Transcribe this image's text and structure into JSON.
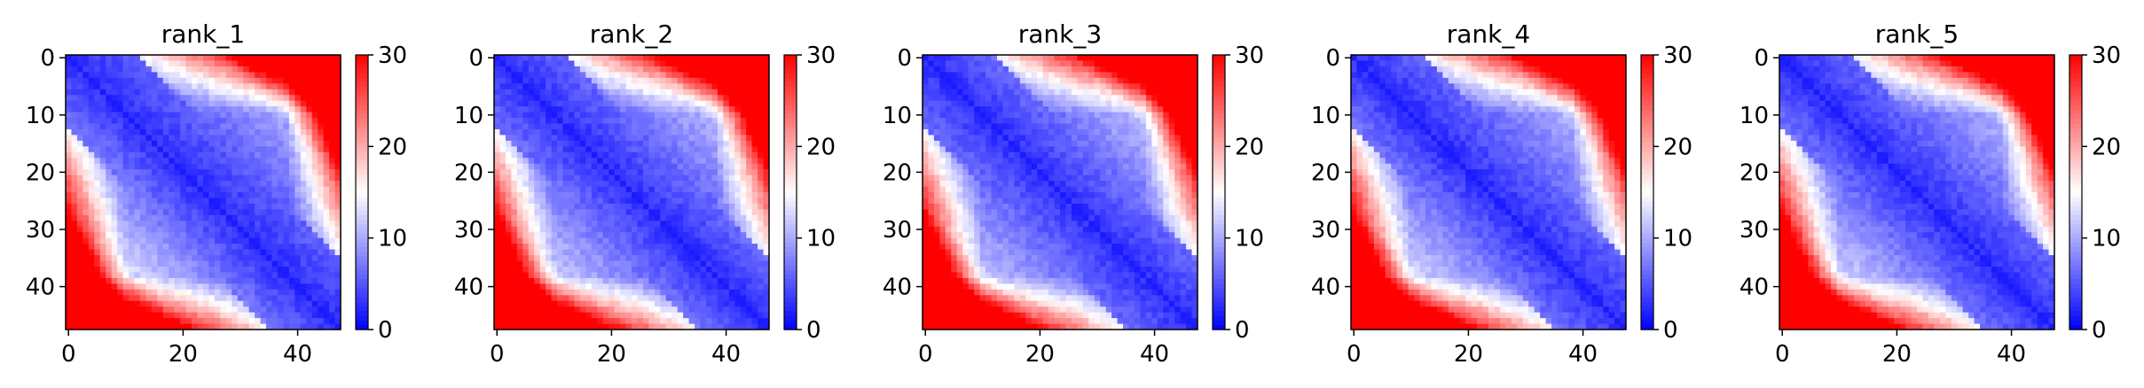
{
  "chart_data": [
    {
      "type": "heatmap",
      "title": "rank_1",
      "n": 48,
      "x_ticks": [
        0,
        20,
        40
      ],
      "y_ticks": [
        0,
        10,
        20,
        30,
        40
      ],
      "colorbar": {
        "min": 0,
        "max": 30,
        "ticks": [
          0,
          10,
          20,
          30
        ]
      },
      "colormap": "bwr",
      "pattern": {
        "seed": 11,
        "band_low": 19,
        "band_high": 30,
        "tilt": 0.06
      }
    },
    {
      "type": "heatmap",
      "title": "rank_2",
      "n": 48,
      "x_ticks": [
        0,
        20,
        40
      ],
      "y_ticks": [
        0,
        10,
        20,
        30,
        40
      ],
      "colorbar": {
        "min": 0,
        "max": 30,
        "ticks": [
          0,
          10,
          20,
          30
        ]
      },
      "colormap": "bwr",
      "pattern": {
        "seed": 23,
        "band_low": 18,
        "band_high": 29,
        "tilt": 0.02
      }
    },
    {
      "type": "heatmap",
      "title": "rank_3",
      "n": 48,
      "x_ticks": [
        0,
        20,
        40
      ],
      "y_ticks": [
        0,
        10,
        20,
        30,
        40
      ],
      "colorbar": {
        "min": 0,
        "max": 30,
        "ticks": [
          0,
          10,
          20,
          30
        ]
      },
      "colormap": "bwr",
      "pattern": {
        "seed": 37,
        "band_low": 19,
        "band_high": 29,
        "tilt": 0.0
      }
    },
    {
      "type": "heatmap",
      "title": "rank_4",
      "n": 48,
      "x_ticks": [
        0,
        20,
        40
      ],
      "y_ticks": [
        0,
        10,
        20,
        30,
        40
      ],
      "colorbar": {
        "min": 0,
        "max": 30,
        "ticks": [
          0,
          10,
          20,
          30
        ]
      },
      "colormap": "bwr",
      "pattern": {
        "seed": 41,
        "band_low": 18,
        "band_high": 30,
        "tilt": 0.04
      }
    },
    {
      "type": "heatmap",
      "title": "rank_5",
      "n": 48,
      "x_ticks": [
        0,
        20,
        40
      ],
      "y_ticks": [
        0,
        10,
        20,
        30,
        40
      ],
      "colorbar": {
        "min": 0,
        "max": 30,
        "ticks": [
          0,
          10,
          20,
          30
        ]
      },
      "colormap": "bwr",
      "pattern": {
        "seed": 53,
        "band_low": 18,
        "band_high": 29,
        "tilt": 0.03
      }
    }
  ]
}
